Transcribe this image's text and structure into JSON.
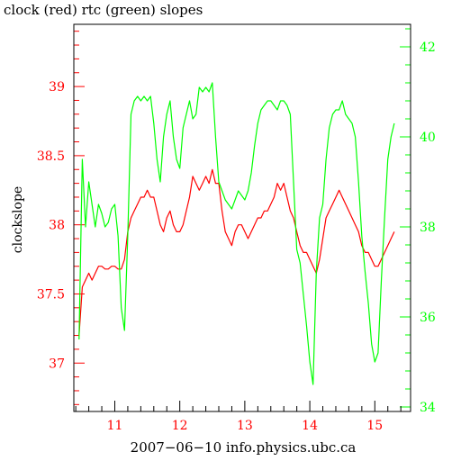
{
  "chart_data": {
    "type": "line",
    "title": "clock (red) rtc (green) slopes",
    "xlabel": "2007−06−10 info.physics.ubc.ca",
    "ylabel": "clockslope",
    "xlim": [
      10.37,
      15.55
    ],
    "ylim_left": [
      36.65,
      39.45
    ],
    "ylim_right": [
      33.9,
      42.5
    ],
    "x_ticks": [
      11,
      12,
      13,
      14,
      15
    ],
    "x_tick_labels": [
      "11",
      "12",
      "13",
      "14",
      "15"
    ],
    "y_left_ticks": [
      37,
      37.5,
      38,
      38.5,
      39
    ],
    "y_left_tick_labels": [
      "37",
      "37.5",
      "38",
      "38.5",
      "39"
    ],
    "y_right_ticks": [
      34,
      36,
      38,
      40,
      42
    ],
    "y_right_tick_labels": [
      "34",
      "36",
      "38",
      "40",
      "42"
    ],
    "colors": {
      "axis_left": "#ff0000",
      "axis_right": "#00ff00",
      "frame": "#000000"
    },
    "series": [
      {
        "name": "clock (red)",
        "axis": "left",
        "color": "#ff0000",
        "x": [
          10.45,
          10.5,
          10.55,
          10.6,
          10.65,
          10.7,
          10.75,
          10.8,
          10.85,
          10.9,
          10.95,
          11.0,
          11.05,
          11.1,
          11.15,
          11.2,
          11.25,
          11.3,
          11.35,
          11.4,
          11.45,
          11.5,
          11.55,
          11.6,
          11.65,
          11.7,
          11.75,
          11.8,
          11.85,
          11.9,
          11.95,
          12.0,
          12.05,
          12.1,
          12.15,
          12.2,
          12.25,
          12.3,
          12.35,
          12.4,
          12.45,
          12.5,
          12.55,
          12.6,
          12.65,
          12.7,
          12.75,
          12.8,
          12.85,
          12.9,
          12.95,
          13.0,
          13.05,
          13.1,
          13.15,
          13.2,
          13.25,
          13.3,
          13.35,
          13.4,
          13.45,
          13.5,
          13.55,
          13.6,
          13.65,
          13.7,
          13.75,
          13.8,
          13.85,
          13.9,
          13.95,
          14.0,
          14.05,
          14.1,
          14.15,
          14.2,
          14.25,
          14.3,
          14.35,
          14.4,
          14.45,
          14.5,
          14.55,
          14.6,
          14.65,
          14.7,
          14.75,
          14.8,
          14.85,
          14.9,
          14.95,
          15.0,
          15.05,
          15.1,
          15.15,
          15.2,
          15.25,
          15.3
        ],
        "values": [
          37.2,
          37.55,
          37.6,
          37.65,
          37.6,
          37.65,
          37.7,
          37.7,
          37.68,
          37.68,
          37.7,
          37.7,
          37.68,
          37.68,
          37.75,
          37.95,
          38.05,
          38.1,
          38.15,
          38.2,
          38.2,
          38.25,
          38.2,
          38.2,
          38.1,
          38.0,
          37.95,
          38.05,
          38.1,
          38.0,
          37.95,
          37.95,
          38.0,
          38.1,
          38.2,
          38.35,
          38.3,
          38.25,
          38.3,
          38.35,
          38.3,
          38.4,
          38.3,
          38.3,
          38.1,
          37.95,
          37.9,
          37.85,
          37.95,
          38.0,
          38.0,
          37.95,
          37.9,
          37.95,
          38.0,
          38.05,
          38.05,
          38.1,
          38.1,
          38.15,
          38.2,
          38.3,
          38.25,
          38.3,
          38.2,
          38.1,
          38.05,
          37.95,
          37.85,
          37.8,
          37.8,
          37.75,
          37.7,
          37.65,
          37.75,
          37.9,
          38.05,
          38.1,
          38.15,
          38.2,
          38.25,
          38.2,
          38.15,
          38.1,
          38.05,
          38.0,
          37.95,
          37.85,
          37.8,
          37.8,
          37.75,
          37.7,
          37.7,
          37.75,
          37.8,
          37.85,
          37.9,
          37.95
        ]
      },
      {
        "name": "rtc (green)",
        "axis": "right",
        "color": "#00ff00",
        "x": [
          10.45,
          10.5,
          10.55,
          10.6,
          10.65,
          10.7,
          10.75,
          10.8,
          10.85,
          10.9,
          10.95,
          11.0,
          11.05,
          11.1,
          11.15,
          11.2,
          11.25,
          11.3,
          11.35,
          11.4,
          11.45,
          11.5,
          11.55,
          11.6,
          11.65,
          11.7,
          11.75,
          11.8,
          11.85,
          11.9,
          11.95,
          12.0,
          12.05,
          12.1,
          12.15,
          12.2,
          12.25,
          12.3,
          12.35,
          12.4,
          12.45,
          12.5,
          12.55,
          12.6,
          12.65,
          12.7,
          12.75,
          12.8,
          12.85,
          12.9,
          12.95,
          13.0,
          13.05,
          13.1,
          13.15,
          13.2,
          13.25,
          13.3,
          13.35,
          13.4,
          13.45,
          13.5,
          13.55,
          13.6,
          13.65,
          13.7,
          13.75,
          13.8,
          13.85,
          13.9,
          13.95,
          14.0,
          14.05,
          14.1,
          14.15,
          14.2,
          14.25,
          14.3,
          14.35,
          14.4,
          14.45,
          14.5,
          14.55,
          14.6,
          14.65,
          14.7,
          14.75,
          14.8,
          14.85,
          14.9,
          14.95,
          15.0,
          15.05,
          15.1,
          15.15,
          15.2,
          15.25,
          15.3
        ],
        "values": [
          35.5,
          39.5,
          38.0,
          39.0,
          38.5,
          38.0,
          38.5,
          38.3,
          38.0,
          38.1,
          38.4,
          38.5,
          37.8,
          36.2,
          35.7,
          37.8,
          40.5,
          40.8,
          40.9,
          40.8,
          40.9,
          40.8,
          40.9,
          40.3,
          39.5,
          39.0,
          40.0,
          40.5,
          40.8,
          40.0,
          39.5,
          39.3,
          40.2,
          40.5,
          40.8,
          40.4,
          40.5,
          41.1,
          41.0,
          41.1,
          41.0,
          41.2,
          40.0,
          39.0,
          38.8,
          38.6,
          38.5,
          38.4,
          38.6,
          38.8,
          38.7,
          38.6,
          38.8,
          39.2,
          39.8,
          40.3,
          40.6,
          40.7,
          40.8,
          40.8,
          40.7,
          40.6,
          40.8,
          40.8,
          40.7,
          40.5,
          39.0,
          37.5,
          37.2,
          36.5,
          35.8,
          35.0,
          34.5,
          37.0,
          38.2,
          38.5,
          39.5,
          40.2,
          40.5,
          40.6,
          40.6,
          40.8,
          40.5,
          40.4,
          40.3,
          40.0,
          39.0,
          37.8,
          37.0,
          36.3,
          35.4,
          35.0,
          35.2,
          36.8,
          38.2,
          39.5,
          40.0,
          40.3
        ]
      }
    ]
  }
}
